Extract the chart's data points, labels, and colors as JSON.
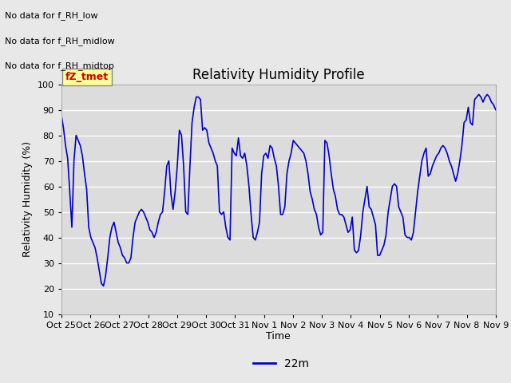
{
  "title": "Relativity Humidity Profile",
  "ylabel": "Relativity Humidity (%)",
  "xlabel": "Time",
  "ylim": [
    10,
    100
  ],
  "line_color": "#0000CC",
  "line_width": 1.2,
  "legend_label": "22m",
  "annotation_lines": [
    "No data for f_RH_low",
    "No data for f_RH_midlow",
    "No data for f_RH_midtop"
  ],
  "legend_box_color": "#FFFF99",
  "legend_box_text": "fZ_tmet",
  "legend_box_text_color": "#CC0000",
  "yticks": [
    10,
    20,
    30,
    40,
    50,
    60,
    70,
    80,
    90,
    100
  ],
  "xtick_labels": [
    "Oct 25",
    "Oct 26",
    "Oct 27",
    "Oct 28",
    "Oct 29",
    "Oct 30",
    "Oct 31",
    "Nov 1",
    "Nov 2",
    "Nov 3",
    "Nov 4",
    "Nov 5",
    "Nov 6",
    "Nov 7",
    "Nov 8",
    "Nov 9"
  ],
  "bg_color": "#E8E8E8",
  "plot_bg_color": "#DCDCDC",
  "grid_color": "#FFFFFF",
  "humidity_values": [
    88,
    83,
    76,
    71,
    58,
    44,
    70,
    80,
    78,
    76,
    72,
    65,
    59,
    44,
    40,
    38,
    36,
    32,
    27,
    22,
    21,
    25,
    32,
    40,
    44,
    46,
    42,
    38,
    36,
    33,
    32,
    30,
    30,
    32,
    40,
    46,
    48,
    50,
    51,
    50,
    48,
    46,
    43,
    42,
    40,
    42,
    46,
    49,
    50,
    58,
    68,
    70,
    57,
    51,
    58,
    68,
    82,
    80,
    68,
    50,
    49,
    68,
    85,
    91,
    95,
    95,
    94,
    82,
    83,
    82,
    77,
    75,
    73,
    70,
    68,
    50,
    49,
    50,
    44,
    40,
    39,
    75,
    73,
    72,
    79,
    72,
    71,
    73,
    68,
    60,
    49,
    40,
    39,
    42,
    46,
    65,
    72,
    73,
    71,
    76,
    75,
    71,
    68,
    60,
    49,
    49,
    52,
    65,
    70,
    73,
    78,
    77,
    76,
    75,
    74,
    73,
    70,
    65,
    58,
    55,
    51,
    49,
    44,
    41,
    42,
    78,
    77,
    72,
    65,
    59,
    56,
    51,
    49,
    49,
    48,
    45,
    42,
    43,
    48,
    35,
    34,
    35,
    41,
    50,
    55,
    60,
    52,
    51,
    48,
    45,
    33,
    33,
    35,
    37,
    41,
    50,
    55,
    60,
    61,
    60,
    52,
    50,
    48,
    41,
    40,
    40,
    39,
    42,
    50,
    58,
    64,
    70,
    73,
    75,
    64,
    65,
    68,
    70,
    72,
    73,
    75,
    76,
    75,
    73,
    70,
    68,
    65,
    62,
    65,
    70,
    76,
    85,
    86,
    91,
    85,
    84,
    94,
    95,
    96,
    95,
    93,
    95,
    96,
    95,
    93,
    92,
    90
  ]
}
